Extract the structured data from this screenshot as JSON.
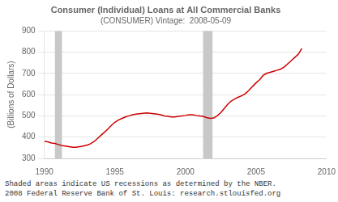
{
  "chart_data": {
    "type": "line",
    "title": "Consumer (Individual) Loans at All Commercial Banks",
    "subtitle": "(CONSUMER) Vintage:  2008-05-09",
    "ylabel": "(Billions of Dollars)",
    "annotations": [
      "Shaded areas indicate US recessions as determined by the NBER.",
      "2008 Federal Reserve Bank of St. Louis:  research.stlouisfed.org"
    ],
    "x": [
      1990.0,
      1990.25,
      1990.5,
      1990.75,
      1991.0,
      1991.25,
      1991.5,
      1991.75,
      1992.0,
      1992.25,
      1992.5,
      1992.75,
      1993.0,
      1993.25,
      1993.5,
      1993.75,
      1994.0,
      1994.25,
      1994.5,
      1994.75,
      1995.0,
      1995.25,
      1995.5,
      1995.75,
      1996.0,
      1996.25,
      1996.5,
      1996.75,
      1997.0,
      1997.25,
      1997.5,
      1997.75,
      1998.0,
      1998.25,
      1998.5,
      1998.75,
      1999.0,
      1999.25,
      1999.5,
      1999.75,
      2000.0,
      2000.25,
      2000.5,
      2000.75,
      2001.0,
      2001.25,
      2001.5,
      2001.75,
      2002.0,
      2002.25,
      2002.5,
      2002.75,
      2003.0,
      2003.25,
      2003.5,
      2003.75,
      2004.0,
      2004.25,
      2004.5,
      2004.75,
      2005.0,
      2005.25,
      2005.5,
      2005.75,
      2006.0,
      2006.25,
      2006.5,
      2006.75,
      2007.0,
      2007.25,
      2007.5,
      2007.75,
      2008.0,
      2008.25
    ],
    "values": [
      380,
      378,
      372,
      370,
      365,
      360,
      358,
      355,
      352,
      352,
      355,
      358,
      362,
      368,
      378,
      392,
      408,
      422,
      438,
      455,
      470,
      480,
      488,
      495,
      500,
      505,
      508,
      510,
      512,
      514,
      512,
      510,
      508,
      505,
      500,
      498,
      495,
      495,
      498,
      500,
      502,
      505,
      505,
      502,
      500,
      498,
      492,
      488,
      490,
      500,
      515,
      535,
      555,
      570,
      580,
      588,
      595,
      605,
      620,
      638,
      655,
      670,
      690,
      700,
      705,
      710,
      715,
      720,
      730,
      745,
      760,
      775,
      790,
      818
    ],
    "color": "#cc0000",
    "recession_bands": [
      {
        "from": 1990.75,
        "to": 1991.25,
        "color": "#c8c8c8"
      },
      {
        "from": 2001.25,
        "to": 2001.92,
        "color": "#c8c8c8"
      }
    ],
    "xlim": [
      1990,
      2010
    ],
    "ylim": [
      300,
      900
    ],
    "xticks": [
      1990,
      1995,
      2000,
      2005,
      2010
    ],
    "yticks": [
      300,
      400,
      500,
      600,
      700,
      800,
      900
    ],
    "grid": true
  }
}
